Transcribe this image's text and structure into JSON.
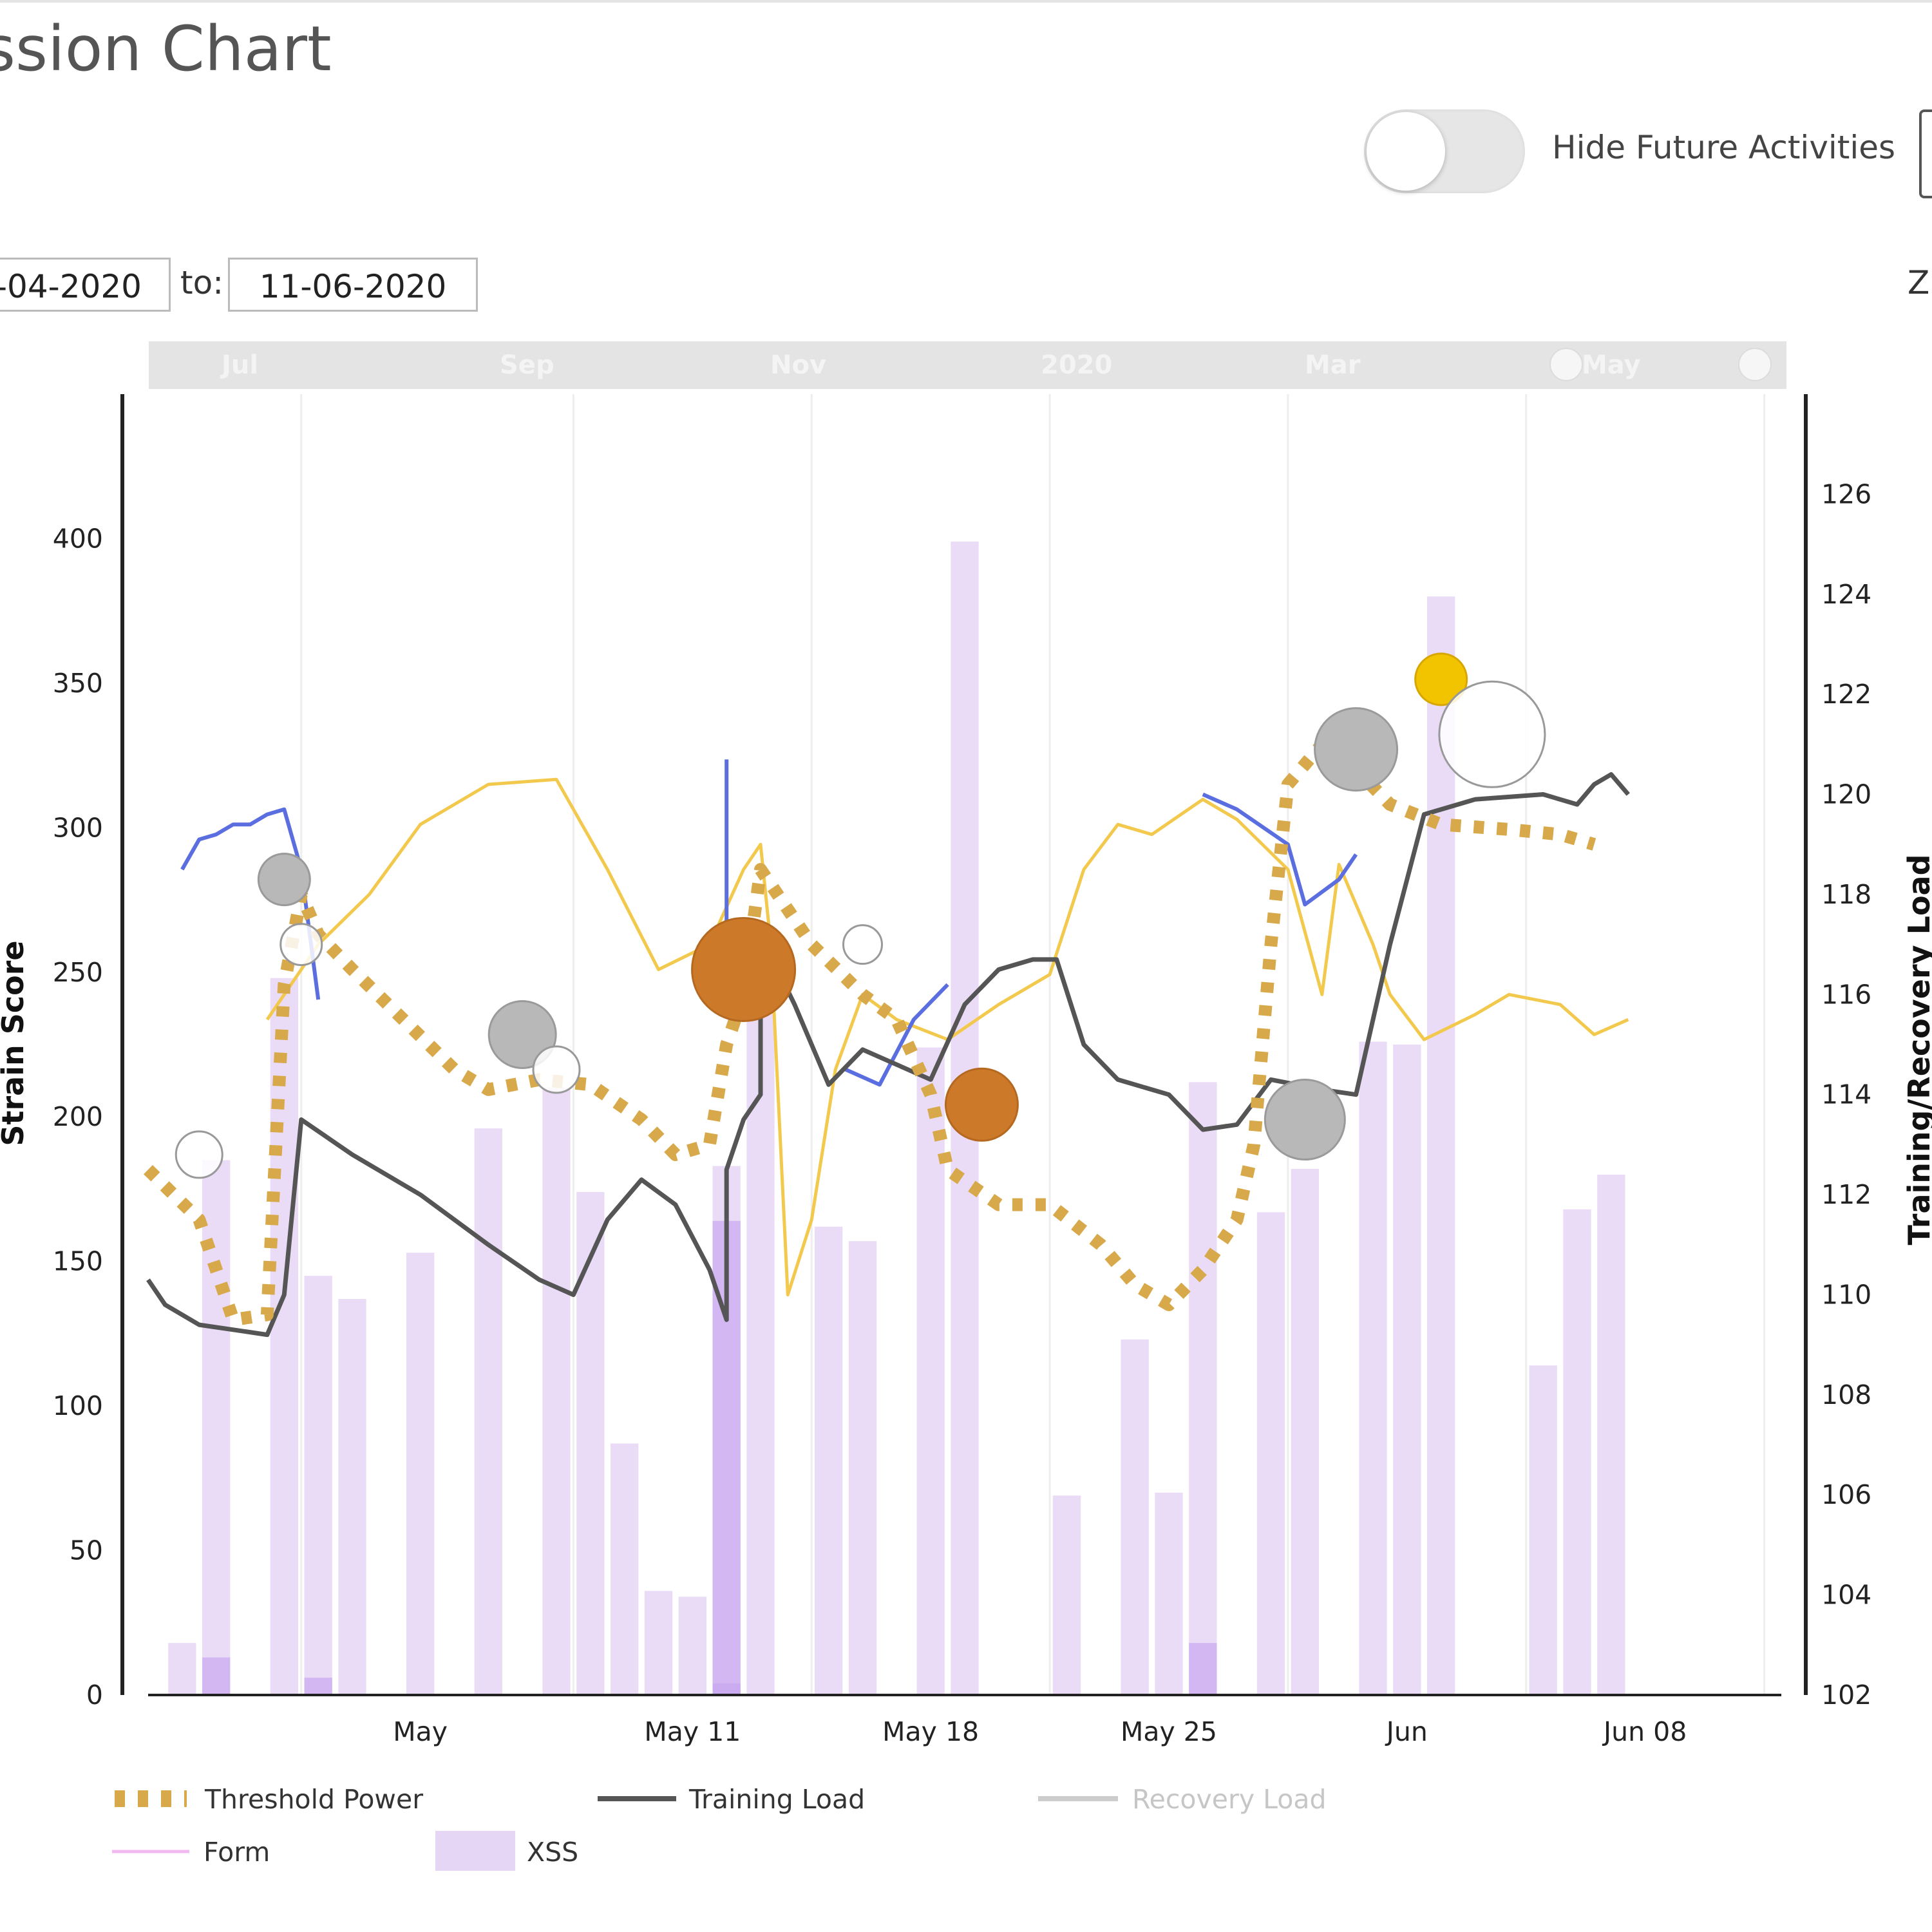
{
  "header": {
    "title": "ssion Chart",
    "toggle_label": "Hide Future Activities",
    "toggle_on": false,
    "edge_letter": "Z"
  },
  "date_range": {
    "from_value": "-04-2020",
    "to_label": "to:",
    "to_value": "11-06-2020"
  },
  "navigator": {
    "labels": [
      "Jul",
      "Sep",
      "Nov",
      "2020",
      "Mar",
      "May"
    ]
  },
  "colors": {
    "threshold": "#d8a94a",
    "training": "#555555",
    "recovery": "#c8c8c8",
    "form": "#f2b8f0",
    "xss": "#e6d6f6",
    "xss_dark": "#c9a6f0",
    "yellow_line": "#f2c94c",
    "blue_line": "#5a6ee0",
    "orange_bubble": "#cc7a2a",
    "gray_bubble": "#b8b8b8",
    "gold_bubble": "#f2c400"
  },
  "chart_data": {
    "type": "bar",
    "x_ticks": [
      "May",
      "May 11",
      "May 18",
      "May 25",
      "Jun",
      "Jun 08"
    ],
    "x_tick_days": [
      3,
      11,
      18,
      25,
      32,
      39
    ],
    "x_range_days": [
      -5,
      43
    ],
    "y_left": {
      "label": "Strain Score",
      "range": [
        0,
        450
      ],
      "ticks": [
        0,
        50,
        100,
        150,
        200,
        250,
        300,
        350,
        400
      ]
    },
    "y_right": {
      "label": "Training/Recovery Load",
      "range": [
        102,
        128
      ],
      "ticks": [
        102,
        104,
        106,
        108,
        110,
        112,
        114,
        116,
        118,
        120,
        122,
        124,
        126
      ]
    },
    "legend": [
      "Threshold Power",
      "Training Load",
      "Recovery Load",
      "Form",
      "XSS"
    ],
    "legend_enabled": [
      true,
      true,
      false,
      true,
      true
    ],
    "xss_bars": [
      {
        "day": -4,
        "value": 18
      },
      {
        "day": -3,
        "value": 185
      },
      {
        "day": -1,
        "value": 248
      },
      {
        "day": 0,
        "value": 145
      },
      {
        "day": 1,
        "value": 137
      },
      {
        "day": 3,
        "value": 153
      },
      {
        "day": 5,
        "value": 196
      },
      {
        "day": 7,
        "value": 210
      },
      {
        "day": 8,
        "value": 174
      },
      {
        "day": 9,
        "value": 87
      },
      {
        "day": 10,
        "value": 36
      },
      {
        "day": 11,
        "value": 34
      },
      {
        "day": 12,
        "value": 183
      },
      {
        "day": 13,
        "value": 262
      },
      {
        "day": 15,
        "value": 162
      },
      {
        "day": 16,
        "value": 157
      },
      {
        "day": 18,
        "value": 224
      },
      {
        "day": 19,
        "value": 399
      },
      {
        "day": 22,
        "value": 69
      },
      {
        "day": 24,
        "value": 123
      },
      {
        "day": 25,
        "value": 70
      },
      {
        "day": 26,
        "value": 212
      },
      {
        "day": 28,
        "value": 167
      },
      {
        "day": 29,
        "value": 182
      },
      {
        "day": 31,
        "value": 226
      },
      {
        "day": 32,
        "value": 225
      },
      {
        "day": 33,
        "value": 380
      },
      {
        "day": 36,
        "value": 114
      },
      {
        "day": 37,
        "value": 168
      },
      {
        "day": 38,
        "value": 180
      }
    ],
    "xss_overlays": [
      {
        "day": -3,
        "value": 13
      },
      {
        "day": 0,
        "value": 6
      },
      {
        "day": 12,
        "value": 164
      },
      {
        "day": 12,
        "value": 4
      },
      {
        "day": 26,
        "value": 18
      }
    ],
    "threshold_power": [
      [
        -5,
        112.5
      ],
      [
        -3.5,
        111.5
      ],
      [
        -2.5,
        109.5
      ],
      [
        -1.5,
        109.6
      ],
      [
        -1,
        116.2
      ],
      [
        -0.5,
        118
      ],
      [
        0,
        117.2
      ],
      [
        1,
        116.5
      ],
      [
        2.5,
        115.5
      ],
      [
        4,
        114.5
      ],
      [
        5,
        114.1
      ],
      [
        6.5,
        114.3
      ],
      [
        8,
        114.2
      ],
      [
        9.5,
        113.5
      ],
      [
        10.5,
        112.8
      ],
      [
        11.5,
        113
      ],
      [
        12,
        115
      ],
      [
        12.5,
        116
      ],
      [
        13,
        118.5
      ],
      [
        14.5,
        117
      ],
      [
        16,
        116
      ],
      [
        17,
        115.5
      ],
      [
        18,
        114
      ],
      [
        18.5,
        112.5
      ],
      [
        20,
        111.8
      ],
      [
        21.5,
        111.8
      ],
      [
        23,
        111
      ],
      [
        24,
        110.2
      ],
      [
        25,
        109.8
      ],
      [
        26,
        110.5
      ],
      [
        27,
        111.5
      ],
      [
        27.5,
        113
      ],
      [
        28,
        117
      ],
      [
        28.5,
        120.2
      ],
      [
        29.5,
        121
      ],
      [
        30.5,
        120.5
      ],
      [
        31.5,
        119.8
      ],
      [
        33,
        119.4
      ],
      [
        35,
        119.3
      ],
      [
        36.5,
        119.2
      ],
      [
        37.5,
        119
      ]
    ],
    "training_load": [
      [
        -5,
        110.3
      ],
      [
        -4.5,
        109.8
      ],
      [
        -3.5,
        109.4
      ],
      [
        -2.5,
        109.3
      ],
      [
        -1.5,
        109.2
      ],
      [
        -1,
        110
      ],
      [
        -0.5,
        113.5
      ],
      [
        1,
        112.8
      ],
      [
        3,
        112
      ],
      [
        5,
        111
      ],
      [
        6.5,
        110.3
      ],
      [
        7.5,
        110
      ],
      [
        8.5,
        111.5
      ],
      [
        9.5,
        112.3
      ],
      [
        10.5,
        111.8
      ],
      [
        11.5,
        110.5
      ],
      [
        12,
        109.5
      ],
      [
        12,
        112.5
      ],
      [
        12.5,
        113.5
      ],
      [
        13,
        114
      ],
      [
        13,
        117.2
      ],
      [
        14,
        115.8
      ],
      [
        15,
        114.2
      ],
      [
        16,
        114.9
      ],
      [
        17,
        114.6
      ],
      [
        18,
        114.3
      ],
      [
        19,
        115.8
      ],
      [
        20,
        116.5
      ],
      [
        21,
        116.7
      ],
      [
        21.7,
        116.7
      ],
      [
        22.5,
        115
      ],
      [
        23.5,
        114.3
      ],
      [
        25,
        114
      ],
      [
        26,
        113.3
      ],
      [
        27,
        113.4
      ],
      [
        28,
        114.3
      ],
      [
        29.5,
        114.1
      ],
      [
        30.5,
        114
      ],
      [
        31.5,
        117
      ],
      [
        32.5,
        119.6
      ],
      [
        34,
        119.9
      ],
      [
        36,
        120
      ],
      [
        37,
        119.8
      ],
      [
        37.5,
        120.2
      ],
      [
        38,
        120.4
      ],
      [
        38.5,
        120
      ]
    ],
    "yellow_line": [
      [
        -1.5,
        115.5
      ],
      [
        0,
        117
      ],
      [
        1.5,
        118
      ],
      [
        3,
        119.4
      ],
      [
        5,
        120.2
      ],
      [
        7,
        120.3
      ],
      [
        8.5,
        118.5
      ],
      [
        10,
        116.5
      ],
      [
        11.5,
        117
      ],
      [
        12.5,
        118.5
      ],
      [
        13,
        119
      ],
      [
        13.3,
        117
      ],
      [
        13.8,
        110
      ],
      [
        14.5,
        111.5
      ],
      [
        15.2,
        114.5
      ],
      [
        16,
        116
      ],
      [
        17,
        115.5
      ],
      [
        18.5,
        115.1
      ],
      [
        20,
        115.8
      ],
      [
        21.5,
        116.4
      ],
      [
        22.5,
        118.5
      ],
      [
        23.5,
        119.4
      ],
      [
        24.5,
        119.2
      ],
      [
        26,
        119.9
      ],
      [
        27,
        119.5
      ],
      [
        28.5,
        118.5
      ],
      [
        29.5,
        116
      ],
      [
        30,
        118.6
      ],
      [
        31,
        117
      ],
      [
        31.5,
        116
      ],
      [
        32.5,
        115.1
      ],
      [
        34,
        115.6
      ],
      [
        35,
        116
      ],
      [
        36.5,
        115.8
      ],
      [
        37.5,
        115.2
      ],
      [
        38.5,
        115.5
      ]
    ],
    "blue_line": [
      [
        [
          -4,
          118.5
        ],
        [
          -3.5,
          119.1
        ],
        [
          -3,
          119.2
        ],
        [
          -2.5,
          119.4
        ],
        [
          -2,
          119.4
        ],
        [
          -1.5,
          119.6
        ],
        [
          -1,
          119.7
        ],
        [
          -0.5,
          118.5
        ],
        [
          0,
          115.9
        ]
      ],
      [
        [
          12,
          120.7
        ],
        [
          12,
          117.1
        ]
      ],
      [
        [
          15.5,
          114.5
        ],
        [
          16.5,
          114.2
        ],
        [
          17.5,
          115.5
        ],
        [
          18.5,
          116.2
        ]
      ],
      [
        [
          26,
          120
        ],
        [
          27,
          119.7
        ],
        [
          28.5,
          119
        ],
        [
          29,
          117.8
        ],
        [
          30,
          118.3
        ],
        [
          30.5,
          118.8
        ]
      ]
    ],
    "bubbles": [
      {
        "day": -3.5,
        "y": 112.8,
        "r": 36,
        "type": "white"
      },
      {
        "day": -1,
        "y": 118.3,
        "r": 40,
        "type": "gray"
      },
      {
        "day": -0.5,
        "y": 117,
        "r": 32,
        "type": "white"
      },
      {
        "day": 6,
        "y": 115.2,
        "r": 52,
        "type": "gray"
      },
      {
        "day": 7,
        "y": 114.5,
        "r": 36,
        "type": "white"
      },
      {
        "day": 12.5,
        "y": 116.5,
        "r": 80,
        "type": "orange"
      },
      {
        "day": 16,
        "y": 117,
        "r": 30,
        "type": "white"
      },
      {
        "day": 19.5,
        "y": 113.8,
        "r": 56,
        "type": "orange"
      },
      {
        "day": 29,
        "y": 113.5,
        "r": 62,
        "type": "gray"
      },
      {
        "day": 30.5,
        "y": 120.9,
        "r": 64,
        "type": "gray"
      },
      {
        "day": 33,
        "y": 122.3,
        "r": 40,
        "type": "gold"
      },
      {
        "day": 34.5,
        "y": 121.2,
        "r": 82,
        "type": "white"
      }
    ]
  }
}
